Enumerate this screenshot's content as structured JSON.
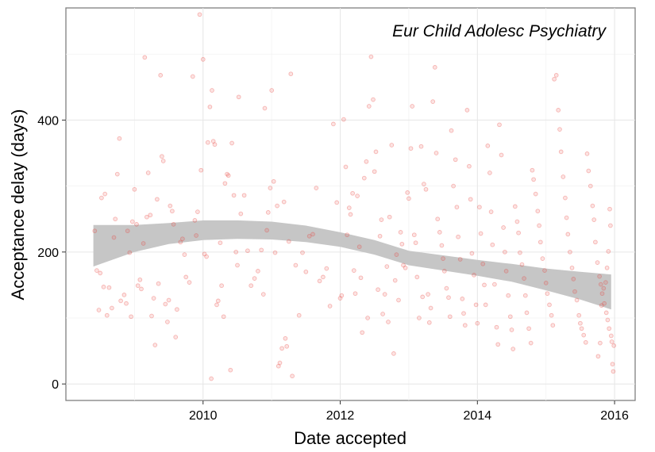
{
  "chart_data": {
    "type": "scatter",
    "title": "",
    "annotation": "Eur Child Adolesc Psychiatry",
    "xlabel": "Date accepted",
    "ylabel": "Acceptance delay (days)",
    "xlim": [
      2008.0,
      2016.3
    ],
    "ylim": [
      -25,
      570
    ],
    "x_ticks": [
      2010,
      2012,
      2014,
      2016
    ],
    "y_ticks": [
      0,
      200,
      400
    ],
    "x_tick_labels": [
      "2010",
      "2012",
      "2014",
      "2016"
    ],
    "y_tick_labels": [
      "0",
      "200",
      "400"
    ],
    "grid": true,
    "point_color": "#e8413b",
    "band_color": "#c6c6c6",
    "smooth_band": {
      "x": [
        2008.4,
        2009.0,
        2009.5,
        2010.0,
        2010.5,
        2011.0,
        2011.5,
        2012.0,
        2012.5,
        2013.0,
        2013.5,
        2014.0,
        2014.5,
        2015.0,
        2015.5,
        2015.95
      ],
      "lower": [
        178,
        200,
        212,
        218,
        220,
        219,
        215,
        208,
        196,
        180,
        172,
        164,
        155,
        142,
        128,
        113
      ],
      "upper": [
        241,
        241,
        244,
        248,
        248,
        246,
        240,
        230,
        218,
        202,
        195,
        188,
        182,
        175,
        170,
        166
      ]
    },
    "points": [
      [
        2008.42,
        232
      ],
      [
        2008.45,
        172
      ],
      [
        2008.48,
        112
      ],
      [
        2008.5,
        168
      ],
      [
        2008.52,
        282
      ],
      [
        2008.55,
        147
      ],
      [
        2008.57,
        288
      ],
      [
        2008.6,
        104
      ],
      [
        2008.63,
        146
      ],
      [
        2008.67,
        115
      ],
      [
        2008.7,
        222
      ],
      [
        2008.72,
        250
      ],
      [
        2008.75,
        318
      ],
      [
        2008.78,
        372
      ],
      [
        2008.8,
        126
      ],
      [
        2008.85,
        135
      ],
      [
        2008.88,
        122
      ],
      [
        2008.9,
        232
      ],
      [
        2008.93,
        199
      ],
      [
        2008.95,
        102
      ],
      [
        2008.97,
        246
      ],
      [
        2009.0,
        295
      ],
      [
        2009.03,
        242
      ],
      [
        2009.05,
        149
      ],
      [
        2009.08,
        158
      ],
      [
        2009.1,
        144
      ],
      [
        2009.13,
        213
      ],
      [
        2009.15,
        495
      ],
      [
        2009.18,
        253
      ],
      [
        2009.2,
        320
      ],
      [
        2009.23,
        256
      ],
      [
        2009.25,
        103
      ],
      [
        2009.28,
        130
      ],
      [
        2009.3,
        59
      ],
      [
        2009.33,
        280
      ],
      [
        2009.35,
        152
      ],
      [
        2009.38,
        468
      ],
      [
        2009.4,
        345
      ],
      [
        2009.42,
        338
      ],
      [
        2009.45,
        121
      ],
      [
        2009.48,
        94
      ],
      [
        2009.5,
        127
      ],
      [
        2009.52,
        270
      ],
      [
        2009.55,
        262
      ],
      [
        2009.57,
        242
      ],
      [
        2009.6,
        71
      ],
      [
        2009.62,
        113
      ],
      [
        2009.63,
        568
      ],
      [
        2009.67,
        215
      ],
      [
        2009.7,
        220
      ],
      [
        2009.73,
        196
      ],
      [
        2009.75,
        162
      ],
      [
        2009.8,
        154
      ],
      [
        2009.85,
        466
      ],
      [
        2009.88,
        248
      ],
      [
        2009.9,
        225
      ],
      [
        2009.92,
        261
      ],
      [
        2009.95,
        560
      ],
      [
        2009.97,
        324
      ],
      [
        2010.0,
        492
      ],
      [
        2010.02,
        197
      ],
      [
        2010.05,
        193
      ],
      [
        2010.07,
        366
      ],
      [
        2010.1,
        420
      ],
      [
        2010.12,
        8
      ],
      [
        2010.13,
        445
      ],
      [
        2010.15,
        368
      ],
      [
        2010.17,
        363
      ],
      [
        2010.2,
        120
      ],
      [
        2010.22,
        126
      ],
      [
        2010.25,
        214
      ],
      [
        2010.27,
        149
      ],
      [
        2010.3,
        102
      ],
      [
        2010.32,
        304
      ],
      [
        2010.35,
        318
      ],
      [
        2010.37,
        316
      ],
      [
        2010.4,
        21
      ],
      [
        2010.42,
        365
      ],
      [
        2010.45,
        286
      ],
      [
        2010.48,
        200
      ],
      [
        2010.5,
        180
      ],
      [
        2010.52,
        435
      ],
      [
        2010.55,
        258
      ],
      [
        2010.6,
        286
      ],
      [
        2010.65,
        202
      ],
      [
        2010.7,
        149
      ],
      [
        2010.75,
        160
      ],
      [
        2010.8,
        171
      ],
      [
        2010.85,
        203
      ],
      [
        2010.88,
        136
      ],
      [
        2010.9,
        418
      ],
      [
        2010.93,
        233
      ],
      [
        2010.95,
        260
      ],
      [
        2010.98,
        297
      ],
      [
        2011.0,
        445
      ],
      [
        2011.03,
        307
      ],
      [
        2011.05,
        199
      ],
      [
        2011.08,
        270
      ],
      [
        2011.1,
        27
      ],
      [
        2011.12,
        32
      ],
      [
        2011.15,
        54
      ],
      [
        2011.18,
        276
      ],
      [
        2011.2,
        69
      ],
      [
        2011.22,
        57
      ],
      [
        2011.25,
        216
      ],
      [
        2011.28,
        470
      ],
      [
        2011.3,
        12
      ],
      [
        2011.35,
        180
      ],
      [
        2011.4,
        104
      ],
      [
        2011.45,
        199
      ],
      [
        2011.5,
        170
      ],
      [
        2011.55,
        224
      ],
      [
        2011.6,
        227
      ],
      [
        2011.65,
        297
      ],
      [
        2011.7,
        156
      ],
      [
        2011.75,
        162
      ],
      [
        2011.8,
        175
      ],
      [
        2011.85,
        118
      ],
      [
        2011.9,
        394
      ],
      [
        2011.95,
        275
      ],
      [
        2012.0,
        130
      ],
      [
        2012.02,
        134
      ],
      [
        2012.05,
        401
      ],
      [
        2012.08,
        329
      ],
      [
        2012.1,
        226
      ],
      [
        2012.13,
        267
      ],
      [
        2012.15,
        257
      ],
      [
        2012.18,
        289
      ],
      [
        2012.2,
        172
      ],
      [
        2012.22,
        137
      ],
      [
        2012.25,
        285
      ],
      [
        2012.28,
        208
      ],
      [
        2012.3,
        161
      ],
      [
        2012.32,
        78
      ],
      [
        2012.35,
        312
      ],
      [
        2012.38,
        337
      ],
      [
        2012.4,
        100
      ],
      [
        2012.42,
        421
      ],
      [
        2012.45,
        496
      ],
      [
        2012.48,
        431
      ],
      [
        2012.5,
        322
      ],
      [
        2012.52,
        352
      ],
      [
        2012.55,
        143
      ],
      [
        2012.58,
        224
      ],
      [
        2012.6,
        249
      ],
      [
        2012.62,
        106
      ],
      [
        2012.65,
        136
      ],
      [
        2012.68,
        178
      ],
      [
        2012.7,
        94
      ],
      [
        2012.72,
        253
      ],
      [
        2012.75,
        362
      ],
      [
        2012.78,
        46
      ],
      [
        2012.8,
        157
      ],
      [
        2012.82,
        196
      ],
      [
        2012.85,
        127
      ],
      [
        2012.88,
        230
      ],
      [
        2012.9,
        212
      ],
      [
        2012.92,
        180
      ],
      [
        2012.95,
        176
      ],
      [
        2012.98,
        290
      ],
      [
        2013.0,
        281
      ],
      [
        2013.03,
        357
      ],
      [
        2013.05,
        421
      ],
      [
        2013.08,
        226
      ],
      [
        2013.1,
        214
      ],
      [
        2013.12,
        162
      ],
      [
        2013.15,
        100
      ],
      [
        2013.18,
        360
      ],
      [
        2013.2,
        132
      ],
      [
        2013.22,
        303
      ],
      [
        2013.25,
        295
      ],
      [
        2013.28,
        136
      ],
      [
        2013.3,
        93
      ],
      [
        2013.32,
        115
      ],
      [
        2013.35,
        428
      ],
      [
        2013.38,
        480
      ],
      [
        2013.4,
        350
      ],
      [
        2013.42,
        250
      ],
      [
        2013.45,
        230
      ],
      [
        2013.48,
        210
      ],
      [
        2013.5,
        190
      ],
      [
        2013.52,
        171
      ],
      [
        2013.55,
        145
      ],
      [
        2013.58,
        131
      ],
      [
        2013.6,
        102
      ],
      [
        2013.62,
        384
      ],
      [
        2013.65,
        300
      ],
      [
        2013.68,
        340
      ],
      [
        2013.7,
        268
      ],
      [
        2013.72,
        223
      ],
      [
        2013.75,
        189
      ],
      [
        2013.78,
        129
      ],
      [
        2013.8,
        107
      ],
      [
        2013.82,
        89
      ],
      [
        2013.85,
        415
      ],
      [
        2013.88,
        330
      ],
      [
        2013.9,
        280
      ],
      [
        2013.92,
        198
      ],
      [
        2013.95,
        165
      ],
      [
        2013.98,
        120
      ],
      [
        2014.0,
        92
      ],
      [
        2014.03,
        268
      ],
      [
        2014.05,
        228
      ],
      [
        2014.08,
        182
      ],
      [
        2014.1,
        150
      ],
      [
        2014.12,
        120
      ],
      [
        2014.15,
        361
      ],
      [
        2014.18,
        320
      ],
      [
        2014.2,
        261
      ],
      [
        2014.22,
        211
      ],
      [
        2014.25,
        151
      ],
      [
        2014.28,
        86
      ],
      [
        2014.3,
        60
      ],
      [
        2014.32,
        393
      ],
      [
        2014.35,
        347
      ],
      [
        2014.38,
        237
      ],
      [
        2014.4,
        200
      ],
      [
        2014.42,
        171
      ],
      [
        2014.45,
        134
      ],
      [
        2014.48,
        102
      ],
      [
        2014.5,
        82
      ],
      [
        2014.52,
        53
      ],
      [
        2014.55,
        269
      ],
      [
        2014.58,
        246
      ],
      [
        2014.6,
        229
      ],
      [
        2014.62,
        199
      ],
      [
        2014.65,
        181
      ],
      [
        2014.68,
        160
      ],
      [
        2014.7,
        134
      ],
      [
        2014.72,
        108
      ],
      [
        2014.75,
        84
      ],
      [
        2014.78,
        62
      ],
      [
        2014.8,
        324
      ],
      [
        2014.82,
        310
      ],
      [
        2014.85,
        288
      ],
      [
        2014.88,
        262
      ],
      [
        2014.9,
        240
      ],
      [
        2014.92,
        215
      ],
      [
        2014.95,
        190
      ],
      [
        2014.98,
        172
      ],
      [
        2015.0,
        153
      ],
      [
        2015.02,
        137
      ],
      [
        2015.05,
        120
      ],
      [
        2015.08,
        104
      ],
      [
        2015.1,
        89
      ],
      [
        2015.12,
        462
      ],
      [
        2015.15,
        468
      ],
      [
        2015.18,
        415
      ],
      [
        2015.2,
        386
      ],
      [
        2015.22,
        352
      ],
      [
        2015.25,
        314
      ],
      [
        2015.28,
        282
      ],
      [
        2015.3,
        252
      ],
      [
        2015.32,
        227
      ],
      [
        2015.35,
        200
      ],
      [
        2015.38,
        176
      ],
      [
        2015.4,
        159
      ],
      [
        2015.42,
        140
      ],
      [
        2015.45,
        127
      ],
      [
        2015.48,
        104
      ],
      [
        2015.5,
        92
      ],
      [
        2015.52,
        84
      ],
      [
        2015.55,
        74
      ],
      [
        2015.58,
        63
      ],
      [
        2015.6,
        349
      ],
      [
        2015.62,
        323
      ],
      [
        2015.65,
        300
      ],
      [
        2015.68,
        270
      ],
      [
        2015.7,
        249
      ],
      [
        2015.72,
        215
      ],
      [
        2015.75,
        184
      ],
      [
        2015.78,
        163
      ],
      [
        2015.8,
        151
      ],
      [
        2015.82,
        137
      ],
      [
        2015.85,
        122
      ],
      [
        2015.88,
        108
      ],
      [
        2015.9,
        97
      ],
      [
        2015.92,
        84
      ],
      [
        2015.95,
        73
      ],
      [
        2015.96,
        64
      ],
      [
        2015.97,
        30
      ],
      [
        2015.98,
        19
      ],
      [
        2015.99,
        58
      ],
      [
        2015.93,
        265
      ],
      [
        2015.94,
        240
      ],
      [
        2015.91,
        201
      ],
      [
        2015.89,
        176
      ],
      [
        2015.87,
        154
      ],
      [
        2015.84,
        145
      ],
      [
        2015.81,
        119
      ],
      [
        2015.79,
        62
      ],
      [
        2015.76,
        42
      ]
    ]
  }
}
